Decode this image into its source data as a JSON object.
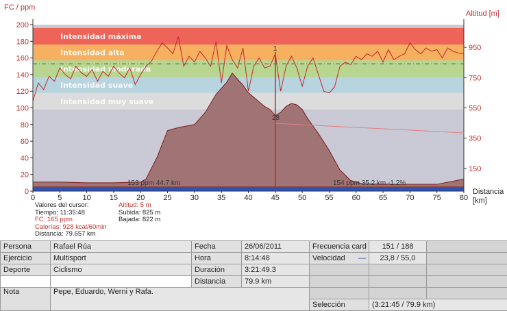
{
  "chart_data": {
    "type": "line",
    "ylabel_left": "FC / ppm",
    "ylabel_right": "Altitud [m]",
    "xlabel": "Distancia [km]",
    "xlim": [
      0,
      80
    ],
    "ylim_left": [
      0,
      200
    ],
    "ylim_right": [
      0,
      1100
    ],
    "x_ticks": [
      0,
      5,
      10,
      15,
      20,
      25,
      30,
      35,
      40,
      45,
      50,
      55,
      60,
      65,
      70,
      75,
      80
    ],
    "y_ticks_left": [
      0,
      20,
      40,
      60,
      80,
      100,
      120,
      140,
      160,
      180,
      200
    ],
    "y_ticks_right": [
      150,
      350,
      550,
      750,
      950
    ],
    "zones": [
      {
        "name": "Intensidad máxima",
        "from": 176,
        "to": 196,
        "color": "#ee6458"
      },
      {
        "name": "Intensidad alta",
        "from": 157,
        "to": 176,
        "color": "#f6b060"
      },
      {
        "name": "Intensidad moderada",
        "from": 137,
        "to": 157,
        "color": "#b8d690"
      },
      {
        "name": "Intensidad suave",
        "from": 118,
        "to": 137,
        "color": "#b8d4de"
      },
      {
        "name": "Intensidad muy suave",
        "from": 98,
        "to": 118,
        "color": "#dcdcdc"
      }
    ],
    "avg_hr_line": 153,
    "series": [
      {
        "name": "",
        "axis": "right",
        "color": "#a07878",
        "x": [
          0,
          5,
          10,
          15,
          20,
          21,
          23,
          25,
          27,
          30,
          32,
          34,
          35,
          36,
          37,
          38,
          39,
          40,
          41,
          42,
          43,
          44,
          45,
          46,
          47,
          48,
          49,
          50,
          51,
          52,
          53,
          55,
          57,
          59,
          61,
          65,
          70,
          75,
          80
        ],
        "values": [
          60,
          60,
          55,
          55,
          60,
          80,
          220,
          400,
          420,
          440,
          520,
          640,
          680,
          720,
          780,
          740,
          700,
          650,
          620,
          590,
          560,
          540,
          500,
          520,
          560,
          580,
          570,
          540,
          480,
          430,
          380,
          270,
          140,
          70,
          50,
          45,
          45,
          45,
          80
        ]
      },
      {
        "name": "",
        "axis": "left",
        "color": "#c03030",
        "x": [
          0,
          1,
          2,
          3,
          4,
          5,
          6,
          7,
          8,
          9,
          10,
          11,
          12,
          13,
          14,
          15,
          16,
          17,
          18,
          19,
          20,
          21,
          22,
          23,
          24,
          25,
          26,
          27,
          28,
          29,
          30,
          31,
          32,
          33,
          34,
          35,
          36,
          37,
          38,
          39,
          40,
          41,
          42,
          43,
          44,
          45,
          46,
          47,
          48,
          49,
          50,
          51,
          52,
          53,
          54,
          55,
          56,
          57,
          58,
          59,
          60,
          61,
          62,
          63,
          64,
          65,
          66,
          67,
          68,
          69,
          70,
          71,
          72,
          73,
          74,
          75,
          76,
          77,
          78,
          79,
          80
        ],
        "values": [
          108,
          130,
          122,
          138,
          132,
          148,
          140,
          135,
          150,
          142,
          138,
          146,
          132,
          144,
          138,
          150,
          142,
          136,
          148,
          128,
          140,
          150,
          156,
          168,
          178,
          172,
          165,
          186,
          150,
          162,
          155,
          168,
          160,
          150,
          180,
          130,
          175,
          158,
          148,
          172,
          120,
          150,
          160,
          148,
          150,
          165,
          120,
          150,
          162,
          148,
          126,
          150,
          160,
          140,
          120,
          118,
          125,
          150,
          155,
          152,
          162,
          158,
          165,
          162,
          168,
          155,
          170,
          158,
          162,
          165,
          178,
          170,
          165,
          172,
          168,
          170,
          160,
          172,
          168,
          166,
          165
        ]
      }
    ],
    "cursor": {
      "x": 45,
      "label": "28",
      "top_label": "1"
    },
    "annotations": [
      "153 ppm 44.7 km",
      "154 ppm 35.2 km -1.2%"
    ]
  },
  "cursor_info": {
    "title": "Valores del cursor:",
    "tiempo": "Tiempo: 11:35:48",
    "fc": "FC: 165 ppm",
    "calorias": "Calorías: 928 kcal/60min",
    "distancia": "Distancia: 79.657 km",
    "altitud": "Altitud: 5 m",
    "subida": "Subida: 825 m",
    "bajada": "Bajada: 822 m"
  },
  "info": {
    "persona_label": "Persona",
    "persona": "Rafael Rúa",
    "ejercicio_label": "Ejercicio",
    "ejercicio": "Multisport",
    "deporte_label": "Deporte",
    "deporte": "Ciclismo",
    "nota_label": "Nota",
    "nota": "Pepe, Eduardo, Werni y Rafa.",
    "fecha_label": "Fecha",
    "fecha": "26/06/2011",
    "hora_label": "Hora",
    "hora": "8:14:48",
    "duracion_label": "Duración",
    "duracion": "3:21:49.3",
    "distancia_label": "Distancia",
    "distancia": "79.9 km",
    "frecuencia_label": "Frecuencia card",
    "frecuencia": "151 / 188",
    "velocidad_label": "Velocidad",
    "velocidad": "23,8 / 55,0",
    "seleccion_label": "Selección",
    "seleccion": "(3:21:45 / 79.9 km)"
  }
}
